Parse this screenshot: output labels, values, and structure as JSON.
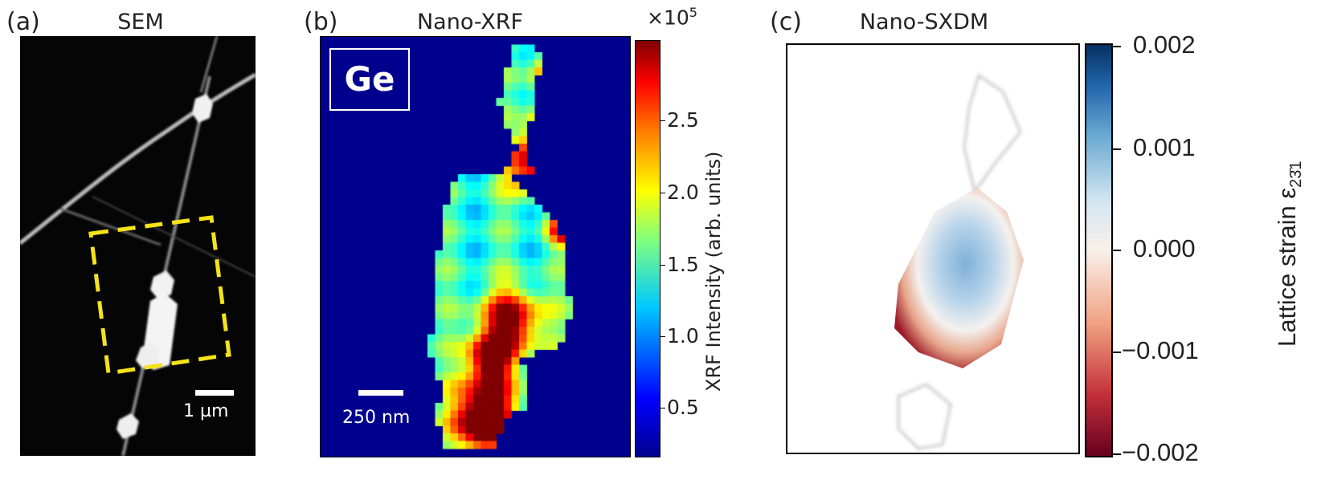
{
  "panels": [
    {
      "label": "(a)",
      "title": "SEM",
      "scale_bar": "1 µm"
    },
    {
      "label": "(b)",
      "title": "Nano-XRF",
      "element": "Ge",
      "scale_bar": "250 nm",
      "colorbar": {
        "multiplier": "×10",
        "exponent": "5",
        "label": "XRF Intensity (arb. units)",
        "ticks": [
          "2.5",
          "2.0",
          "1.5",
          "1.0",
          "0.5"
        ],
        "colormap": "jet",
        "range": [
          0.1,
          2.95
        ]
      }
    },
    {
      "label": "(c)",
      "title": "Nano-SXDM",
      "colorbar": {
        "label": "Lattice strain ε",
        "subscript": "23̄1",
        "ticks": [
          "0.002",
          "0.001",
          "0.000",
          "−0.001",
          "−0.002"
        ],
        "colormap": "RdBu",
        "range": [
          -0.002,
          0.002
        ]
      }
    }
  ],
  "colors": {
    "highlight_box": "#f5e31a",
    "xrf_background": "#00008f"
  }
}
